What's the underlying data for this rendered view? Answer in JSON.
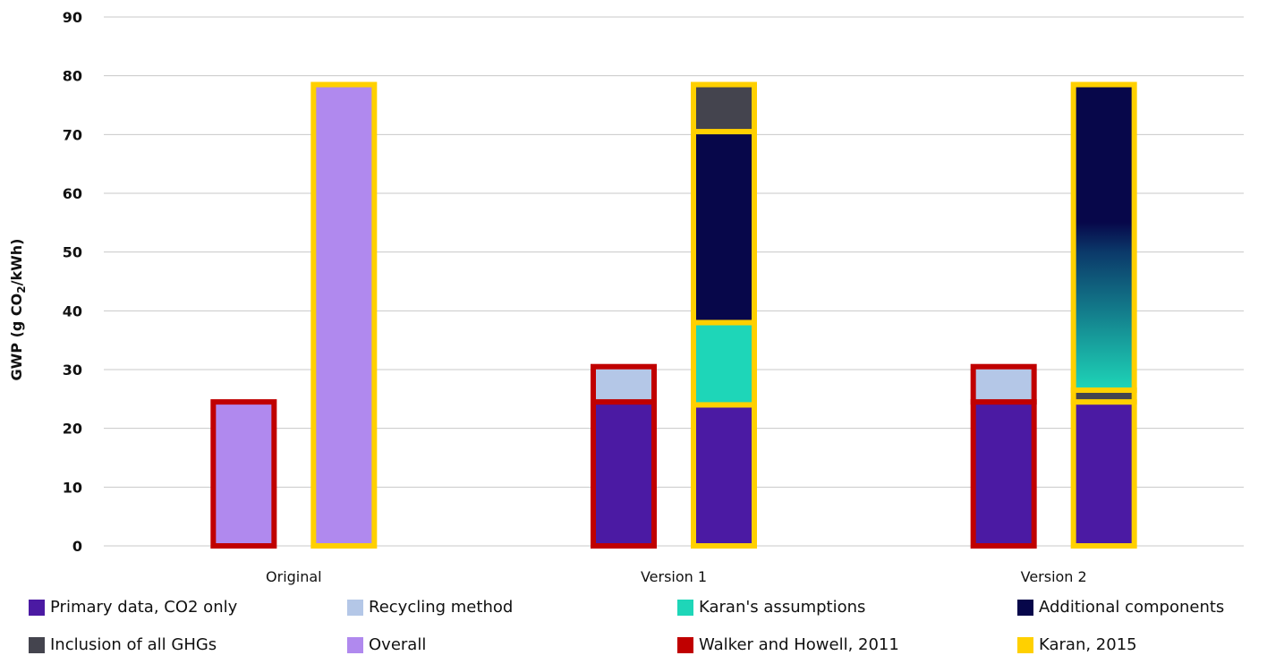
{
  "chart_data": {
    "type": "bar",
    "stacked": true,
    "ylabel_main": "GWP (g CO",
    "ylabel_sub": "2",
    "ylabel_end": "/kWh)",
    "ylim": [
      0,
      90
    ],
    "yticks": [
      "0",
      "10",
      "20",
      "30",
      "40",
      "50",
      "60",
      "70",
      "80",
      "90"
    ],
    "grid": true,
    "legend_position": "bottom",
    "categories": [
      "Original",
      "Version 1",
      "Version 2"
    ],
    "colors": {
      "primary": "#4b1aa3",
      "recycling": "#b4c7e7",
      "karan_assumptions": "#1ed6b8",
      "additional": "#07074a",
      "ghg": "#44444e",
      "overall": "#b089ee",
      "walker_outline": "#c00000",
      "karan_outline": "#ffd000",
      "grid": "#c8c8c8"
    },
    "bars": [
      {
        "category": "Original",
        "source": "Walker and Howell, 2011",
        "outline": "walker_outline",
        "segments": [
          {
            "series": "Overall",
            "value": 24.5,
            "color": "overall"
          }
        ]
      },
      {
        "category": "Original",
        "source": "Karan, 2015",
        "outline": "karan_outline",
        "segments": [
          {
            "series": "Overall",
            "value": 78.5,
            "color": "overall"
          }
        ]
      },
      {
        "category": "Version 1",
        "source": "Walker and Howell, 2011",
        "outline": "walker_outline",
        "segments": [
          {
            "series": "Primary data, CO2 only",
            "value": 24.5,
            "color": "primary"
          },
          {
            "series": "Recycling method",
            "value": 6,
            "color": "recycling"
          }
        ]
      },
      {
        "category": "Version 1",
        "source": "Karan, 2015",
        "outline": "karan_outline",
        "segments": [
          {
            "series": "Primary data, CO2 only",
            "value": 24,
            "color": "primary"
          },
          {
            "series": "Karan's assumptions",
            "value": 14,
            "color": "karan_assumptions"
          },
          {
            "series": "Additional components",
            "value": 32.5,
            "color": "additional"
          },
          {
            "series": "Inclusion of all GHGs",
            "value": 8,
            "color": "ghg"
          }
        ]
      },
      {
        "category": "Version 2",
        "source": "Walker and Howell, 2011",
        "outline": "walker_outline",
        "segments": [
          {
            "series": "Primary data, CO2 only",
            "value": 24.5,
            "color": "primary"
          },
          {
            "series": "Recycling method",
            "value": 6,
            "color": "recycling"
          }
        ]
      },
      {
        "category": "Version 2",
        "source": "Karan, 2015",
        "outline": "karan_outline",
        "segments": [
          {
            "series": "Primary data, CO2 only",
            "value": 24.5,
            "color": "primary"
          },
          {
            "series": "Inclusion of all GHGs",
            "value": 2,
            "color": "ghg"
          },
          {
            "series": "Additional components",
            "value": 52,
            "color": "additional",
            "gradient": true
          }
        ]
      }
    ],
    "legend": [
      {
        "label": "Primary data, CO2 only",
        "color": "primary"
      },
      {
        "label": "Recycling method",
        "color": "recycling"
      },
      {
        "label": "Karan's assumptions",
        "color": "karan_assumptions"
      },
      {
        "label": "Additional components",
        "color": "additional"
      },
      {
        "label": "Inclusion of all GHGs",
        "color": "ghg"
      },
      {
        "label": "Overall",
        "color": "overall"
      },
      {
        "label": "Walker and Howell, 2011",
        "color": "walker_outline"
      },
      {
        "label": "Karan, 2015",
        "color": "karan_outline"
      }
    ]
  }
}
